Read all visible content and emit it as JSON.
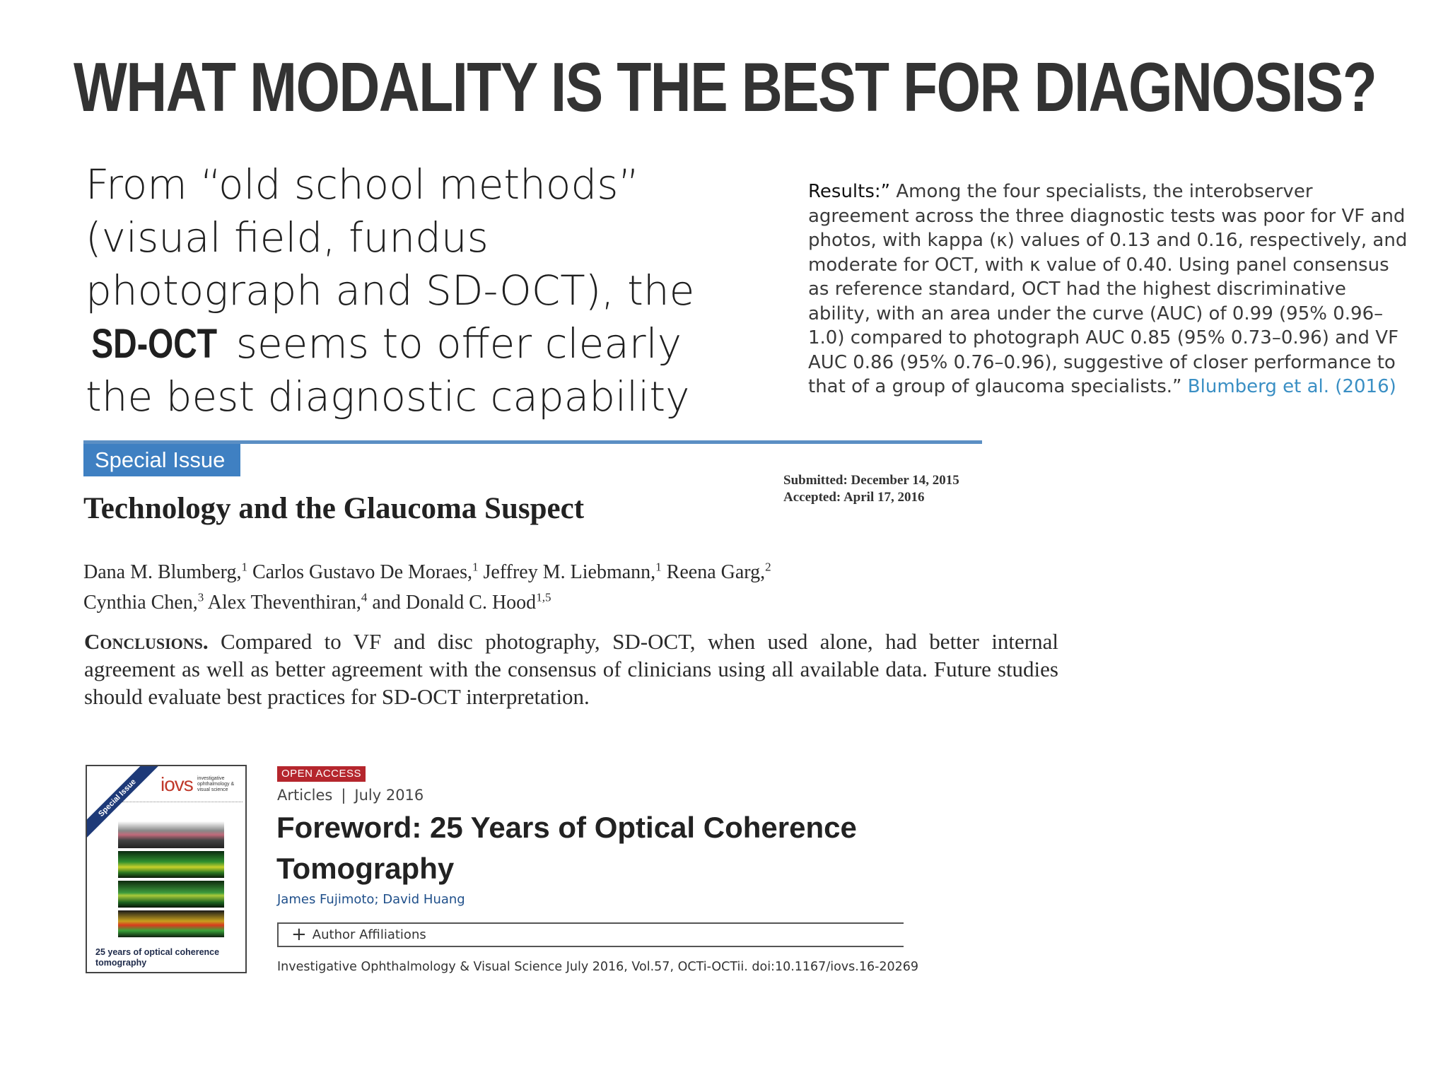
{
  "slide": {
    "title": "WHAT MODALITY IS THE BEST FOR DIAGNOSIS?",
    "lead_before": "From “old school methods” (visual field, fundus photograph and SD-OCT), the ",
    "lead_emphasis": "SD-OCT",
    "lead_after": " seems to offer clearly the best diagnostic capability",
    "quote_label": "Results:”",
    "quote_text": " Among the four specialists, the interobserver agreement across the three diagnostic tests was poor for VF and photos, with kappa (κ) values of 0.13 and 0.16, respectively, and moderate for OCT, with κ value of 0.40. Using panel consensus as reference standard, OCT had the highest discriminative ability, with an area under the curve (AUC) of 0.99 (95% 0.96–1.0) compared to photograph AUC 0.85 (95% 0.73–0.96) and VF AUC 0.86 (95% 0.76–0.96), suggestive of closer performance to that of a group of glaucoma specialists.” ",
    "quote_cite": "Blumberg et al. (2016)"
  },
  "article1": {
    "badge": "Special Issue",
    "submitted": "Submitted: December 14, 2015",
    "accepted": "Accepted: April 17, 2016",
    "title": "Technology and the Glaucoma Suspect",
    "authors_line1": [
      {
        "name": "Dana M. Blumberg,",
        "sup": "1"
      },
      {
        "name": " Carlos Gustavo De Moraes,",
        "sup": "1"
      },
      {
        "name": " Jeffrey M. Liebmann,",
        "sup": "1"
      },
      {
        "name": " Reena Garg,",
        "sup": "2"
      }
    ],
    "authors_line2": [
      {
        "name": "Cynthia Chen,",
        "sup": "3"
      },
      {
        "name": " Alex Theventhiran,",
        "sup": "4"
      },
      {
        "name": " and Donald C. Hood",
        "sup": "1,5"
      }
    ],
    "conclusion_label": "Conclusions.",
    "conclusion_text": " Compared to VF and disc photography, SD-OCT, when used alone, had better internal agreement as well as better agreement with the consensus of clinicians using all available data. Future studies should evaluate best practices for SD-OCT interpretation."
  },
  "article2": {
    "cover": {
      "ribbon": "Special Issue",
      "logo": "iovs",
      "logo_sub": "investigative ophthalmology & visual science",
      "caption": "25 years of optical coherence tomography"
    },
    "badge": "OPEN ACCESS",
    "section": "Articles",
    "date": "July 2016",
    "title": "Foreword: 25 Years of Optical Coherence Tomography",
    "authors": "James Fujimoto; David Huang",
    "affiliations_label": "Author Affiliations",
    "citation": "Investigative Ophthalmology & Visual Science July 2016, Vol.57, OCTi-OCTii. doi:10.1167/iovs.16-20269"
  }
}
